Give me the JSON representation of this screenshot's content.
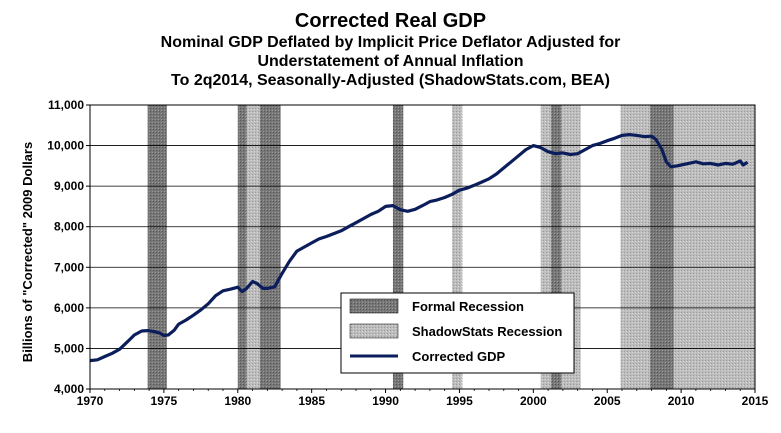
{
  "chart_data": {
    "type": "line",
    "title": "Corrected Real GDP",
    "subtitle_lines": [
      "Nominal GDP Deflated by Implicit Price Deflator Adjusted for",
      "Understatement of Annual Inflation",
      "To 2q2014, Seasonally-Adjusted (ShadowStats.com, BEA)"
    ],
    "ylabel": "Billions of \"Corrected\" 2009 Dollars",
    "xlabel": "",
    "xlim": [
      1970,
      2015
    ],
    "ylim": [
      4000,
      11000
    ],
    "x_ticks": [
      "1970",
      "1975",
      "1980",
      "1985",
      "1990",
      "1995",
      "2000",
      "2005",
      "2010",
      "2015"
    ],
    "y_ticks": [
      "4,000",
      "5,000",
      "6,000",
      "7,000",
      "8,000",
      "9,000",
      "10,000",
      "11,000"
    ],
    "formal_recessions": [
      [
        1973.9,
        1975.2
      ],
      [
        1980.0,
        1980.6
      ],
      [
        1981.5,
        1982.9
      ],
      [
        1990.5,
        1991.2
      ],
      [
        2001.2,
        2001.9
      ],
      [
        2007.9,
        2009.5
      ]
    ],
    "shadowstats_recessions": [
      [
        1980.6,
        1981.5
      ],
      [
        1994.5,
        1995.2
      ],
      [
        2000.5,
        2001.2
      ],
      [
        2001.9,
        2003.2
      ],
      [
        2005.9,
        2007.9
      ],
      [
        2009.5,
        2015.0
      ]
    ],
    "legend": {
      "position": "center-bottom",
      "entries": [
        "Formal Recession",
        "ShadowStats Recession",
        "Corrected GDP"
      ]
    },
    "series": [
      {
        "name": "Corrected GDP",
        "color": "#0b1e5b",
        "x": [
          1970.0,
          1970.5,
          1971.0,
          1971.5,
          1972.0,
          1972.5,
          1973.0,
          1973.5,
          1973.9,
          1974.3,
          1974.7,
          1975.0,
          1975.3,
          1975.7,
          1976.0,
          1976.5,
          1977.0,
          1977.5,
          1978.0,
          1978.5,
          1979.0,
          1979.5,
          1980.0,
          1980.3,
          1980.6,
          1981.0,
          1981.3,
          1981.7,
          1982.0,
          1982.5,
          1983.0,
          1983.5,
          1984.0,
          1984.5,
          1985.0,
          1985.5,
          1986.0,
          1986.5,
          1987.0,
          1987.5,
          1988.0,
          1988.5,
          1989.0,
          1989.5,
          1990.0,
          1990.5,
          1991.0,
          1991.5,
          1992.0,
          1992.5,
          1993.0,
          1993.5,
          1994.0,
          1994.5,
          1995.0,
          1995.5,
          1996.0,
          1996.5,
          1997.0,
          1997.5,
          1998.0,
          1998.5,
          1999.0,
          1999.5,
          2000.0,
          2000.5,
          2001.0,
          2001.5,
          2002.0,
          2002.5,
          2003.0,
          2003.5,
          2004.0,
          2004.5,
          2005.0,
          2005.5,
          2006.0,
          2006.5,
          2007.0,
          2007.5,
          2008.0,
          2008.3,
          2008.7,
          2009.0,
          2009.3,
          2009.7,
          2010.0,
          2010.5,
          2011.0,
          2011.5,
          2012.0,
          2012.5,
          2013.0,
          2013.5,
          2014.0,
          2014.2,
          2014.5
        ],
        "values": [
          4700,
          4720,
          4800,
          4880,
          4980,
          5150,
          5330,
          5430,
          5440,
          5420,
          5380,
          5320,
          5330,
          5450,
          5600,
          5700,
          5820,
          5950,
          6100,
          6300,
          6420,
          6460,
          6510,
          6400,
          6480,
          6650,
          6600,
          6480,
          6480,
          6520,
          6850,
          7150,
          7400,
          7500,
          7600,
          7700,
          7760,
          7830,
          7900,
          8000,
          8100,
          8200,
          8300,
          8380,
          8500,
          8520,
          8420,
          8380,
          8430,
          8520,
          8620,
          8660,
          8720,
          8800,
          8900,
          8950,
          9020,
          9100,
          9180,
          9300,
          9450,
          9600,
          9750,
          9900,
          10000,
          9950,
          9850,
          9800,
          9820,
          9780,
          9800,
          9900,
          10000,
          10050,
          10120,
          10180,
          10250,
          10270,
          10250,
          10220,
          10230,
          10150,
          9900,
          9600,
          9480,
          9500,
          9520,
          9560,
          9600,
          9550,
          9560,
          9520,
          9560,
          9540,
          9620,
          9520,
          9590
        ]
      }
    ]
  }
}
